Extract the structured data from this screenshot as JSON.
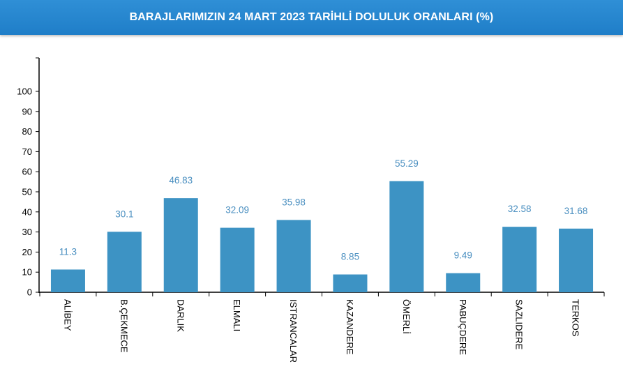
{
  "header": {
    "title": "BARAJLARIMIZIN 24 MART 2023 TARİHLİ DOLULUK ORANLARI (%)",
    "background": "#2584d0"
  },
  "chart_data": {
    "type": "bar",
    "title": "BARAJLARIMIZIN 24 MART 2023 TARİHLİ DOLULUK ORANLARI (%)",
    "xlabel": "",
    "ylabel": "",
    "categories": [
      "ALİBEY",
      "B.ÇEKMECE",
      "DARLIK",
      "ELMALI",
      "ISTRANCALAR",
      "KAZANDERE",
      "ÖMERLİ",
      "PABUÇDERE",
      "SAZLIDERE",
      "TERKOS"
    ],
    "values": [
      11.3,
      30.1,
      46.83,
      32.09,
      35.98,
      8.85,
      55.29,
      9.49,
      32.58,
      31.68
    ],
    "value_labels": [
      "11.3",
      "30.1",
      "46.83",
      "32.09",
      "35.98",
      "8.85",
      "55.29",
      "9.49",
      "32.58",
      "31.68"
    ],
    "yticks": [
      "0",
      "10",
      "20",
      "30",
      "40",
      "50",
      "60",
      "70",
      "80",
      "90",
      "100"
    ],
    "ylim": [
      0,
      100
    ],
    "grid": false,
    "legend": "none",
    "bar_color": "#3d93c4",
    "label_color": "#4a8fc0"
  }
}
